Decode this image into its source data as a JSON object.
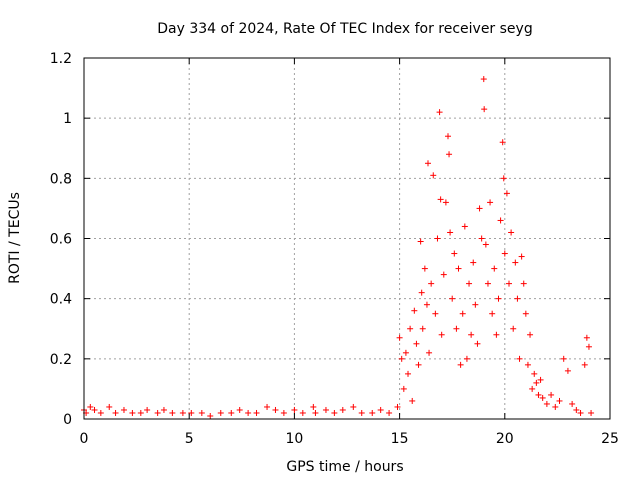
{
  "chart_data": {
    "type": "scatter",
    "title": "Day 334 of 2024, Rate Of TEC Index for receiver seyg",
    "xlabel": "GPS time / hours",
    "ylabel": "ROTI / TECUs",
    "xlim": [
      0,
      25
    ],
    "ylim": [
      0,
      1.2
    ],
    "x_ticks": [
      0,
      5,
      10,
      15,
      20,
      25
    ],
    "y_ticks": [
      0,
      0.2,
      0.4,
      0.6,
      0.8,
      1,
      1.2
    ],
    "x_tick_labels": [
      "0",
      "5",
      "10",
      "15",
      "20",
      "25"
    ],
    "y_tick_labels": [
      "0",
      "0.2",
      "0.4",
      "0.6",
      "0.8",
      "1",
      "1.2"
    ],
    "grid": true,
    "marker": "+",
    "marker_color": "#ff0000",
    "series": [
      {
        "points": [
          [
            0.0,
            0.03
          ],
          [
            0.1,
            0.02
          ],
          [
            0.3,
            0.04
          ],
          [
            0.5,
            0.03
          ],
          [
            0.8,
            0.02
          ],
          [
            1.2,
            0.04
          ],
          [
            1.5,
            0.02
          ],
          [
            1.9,
            0.03
          ],
          [
            2.3,
            0.02
          ],
          [
            2.7,
            0.02
          ],
          [
            3.0,
            0.03
          ],
          [
            3.5,
            0.02
          ],
          [
            3.8,
            0.03
          ],
          [
            4.2,
            0.02
          ],
          [
            4.7,
            0.02
          ],
          [
            5.1,
            0.02
          ],
          [
            5.6,
            0.02
          ],
          [
            6.0,
            0.01
          ],
          [
            6.5,
            0.02
          ],
          [
            7.0,
            0.02
          ],
          [
            7.4,
            0.03
          ],
          [
            7.8,
            0.02
          ],
          [
            8.2,
            0.02
          ],
          [
            8.7,
            0.04
          ],
          [
            9.1,
            0.03
          ],
          [
            9.5,
            0.02
          ],
          [
            10.0,
            0.03
          ],
          [
            10.4,
            0.02
          ],
          [
            10.9,
            0.04
          ],
          [
            11.0,
            0.02
          ],
          [
            11.5,
            0.03
          ],
          [
            11.9,
            0.02
          ],
          [
            12.3,
            0.03
          ],
          [
            12.8,
            0.04
          ],
          [
            13.2,
            0.02
          ],
          [
            13.7,
            0.02
          ],
          [
            14.1,
            0.03
          ],
          [
            14.5,
            0.02
          ],
          [
            14.9,
            0.04
          ],
          [
            15.0,
            0.27
          ],
          [
            15.1,
            0.2
          ],
          [
            15.2,
            0.1
          ],
          [
            15.3,
            0.22
          ],
          [
            15.4,
            0.15
          ],
          [
            15.5,
            0.3
          ],
          [
            15.6,
            0.06
          ],
          [
            15.7,
            0.36
          ],
          [
            15.8,
            0.25
          ],
          [
            15.9,
            0.18
          ],
          [
            16.0,
            0.59
          ],
          [
            16.05,
            0.42
          ],
          [
            16.1,
            0.3
          ],
          [
            16.2,
            0.5
          ],
          [
            16.3,
            0.38
          ],
          [
            16.35,
            0.85
          ],
          [
            16.4,
            0.22
          ],
          [
            16.5,
            0.45
          ],
          [
            16.6,
            0.81
          ],
          [
            16.7,
            0.35
          ],
          [
            16.8,
            0.6
          ],
          [
            16.9,
            1.02
          ],
          [
            16.95,
            0.73
          ],
          [
            17.0,
            0.28
          ],
          [
            17.1,
            0.48
          ],
          [
            17.2,
            0.72
          ],
          [
            17.3,
            0.94
          ],
          [
            17.35,
            0.88
          ],
          [
            17.4,
            0.62
          ],
          [
            17.5,
            0.4
          ],
          [
            17.6,
            0.55
          ],
          [
            17.7,
            0.3
          ],
          [
            17.8,
            0.5
          ],
          [
            17.9,
            0.18
          ],
          [
            18.0,
            0.35
          ],
          [
            18.1,
            0.64
          ],
          [
            18.2,
            0.2
          ],
          [
            18.3,
            0.45
          ],
          [
            18.4,
            0.28
          ],
          [
            18.5,
            0.52
          ],
          [
            18.6,
            0.38
          ],
          [
            18.7,
            0.25
          ],
          [
            18.8,
            0.7
          ],
          [
            18.9,
            0.6
          ],
          [
            19.0,
            1.13
          ],
          [
            19.02,
            1.03
          ],
          [
            19.1,
            0.58
          ],
          [
            19.2,
            0.45
          ],
          [
            19.3,
            0.72
          ],
          [
            19.4,
            0.35
          ],
          [
            19.5,
            0.5
          ],
          [
            19.6,
            0.28
          ],
          [
            19.7,
            0.4
          ],
          [
            19.8,
            0.66
          ],
          [
            19.9,
            0.92
          ],
          [
            19.95,
            0.8
          ],
          [
            20.0,
            0.55
          ],
          [
            20.1,
            0.75
          ],
          [
            20.2,
            0.45
          ],
          [
            20.3,
            0.62
          ],
          [
            20.4,
            0.3
          ],
          [
            20.5,
            0.52
          ],
          [
            20.6,
            0.4
          ],
          [
            20.7,
            0.2
          ],
          [
            20.8,
            0.54
          ],
          [
            20.9,
            0.45
          ],
          [
            21.0,
            0.35
          ],
          [
            21.1,
            0.18
          ],
          [
            21.2,
            0.28
          ],
          [
            21.3,
            0.1
          ],
          [
            21.4,
            0.15
          ],
          [
            21.5,
            0.12
          ],
          [
            21.6,
            0.08
          ],
          [
            21.7,
            0.13
          ],
          [
            21.8,
            0.07
          ],
          [
            22.0,
            0.05
          ],
          [
            22.2,
            0.08
          ],
          [
            22.4,
            0.04
          ],
          [
            22.6,
            0.06
          ],
          [
            22.8,
            0.2
          ],
          [
            23.0,
            0.16
          ],
          [
            23.2,
            0.05
          ],
          [
            23.4,
            0.03
          ],
          [
            23.6,
            0.02
          ],
          [
            23.8,
            0.18
          ],
          [
            23.9,
            0.27
          ],
          [
            24.0,
            0.24
          ],
          [
            24.1,
            0.02
          ]
        ]
      }
    ]
  }
}
